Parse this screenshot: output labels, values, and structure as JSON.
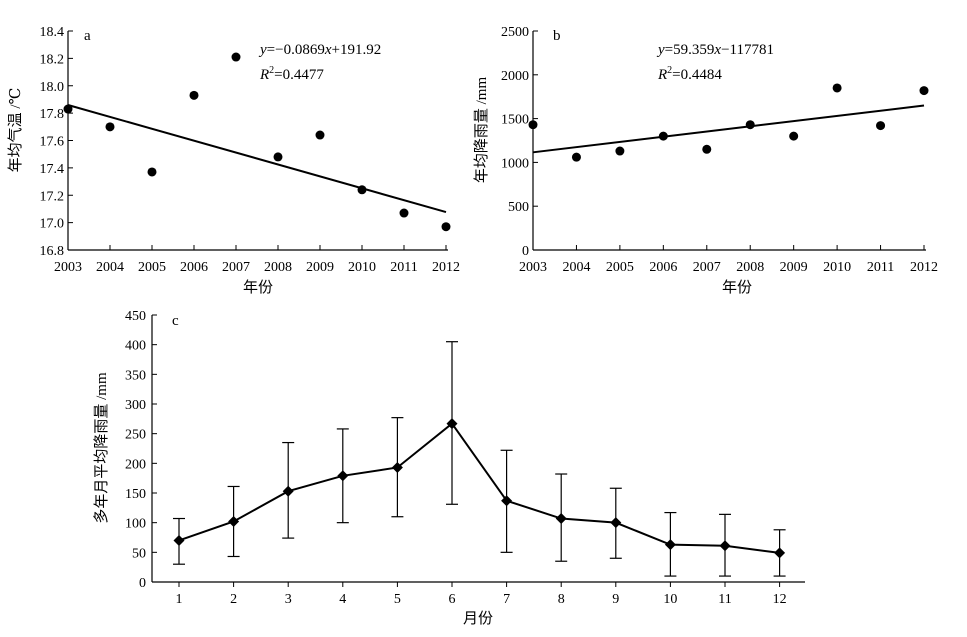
{
  "chart_data": [
    {
      "panel": "a",
      "type": "scatter",
      "xlabel": "年份",
      "ylabel": "年均气温 /℃",
      "x": [
        2003,
        2004,
        2005,
        2006,
        2007,
        2008,
        2009,
        2010,
        2011,
        2012
      ],
      "xticks": [
        "2003",
        "2004",
        "2005",
        "2006",
        "2007",
        "2008",
        "2009",
        "2010",
        "2011",
        "2012"
      ],
      "y": [
        17.83,
        17.7,
        17.37,
        17.93,
        18.21,
        17.48,
        17.64,
        17.24,
        17.07,
        16.97
      ],
      "xlim": [
        2003,
        2012
      ],
      "ylim": [
        16.8,
        18.4
      ],
      "yticks": [
        "16.8",
        "17.0",
        "17.2",
        "17.4",
        "17.6",
        "17.8",
        "18.0",
        "18.2",
        "18.4"
      ],
      "trend": {
        "slope": -0.0869,
        "intercept": 191.92
      },
      "equation": {
        "y_prefix": "y",
        "rest": "=−0.0869",
        "x_var": "x",
        "tail": "+191.92"
      },
      "r2": {
        "label": "R",
        "sup": "2",
        "value": "=0.4477"
      }
    },
    {
      "panel": "b",
      "type": "scatter",
      "xlabel": "年份",
      "ylabel": "年均降雨量 /mm",
      "x": [
        2003,
        2004,
        2005,
        2006,
        2007,
        2008,
        2009,
        2010,
        2011,
        2012
      ],
      "xticks": [
        "2003",
        "2004",
        "2005",
        "2006",
        "2007",
        "2008",
        "2009",
        "2010",
        "2011",
        "2012"
      ],
      "y": [
        1430,
        1060,
        1130,
        1300,
        1150,
        1430,
        1300,
        1850,
        1420,
        1820
      ],
      "xlim": [
        2003,
        2012
      ],
      "ylim": [
        0,
        2500
      ],
      "yticks": [
        "0",
        "500",
        "1000",
        "1500",
        "2000",
        "2500"
      ],
      "trend": {
        "slope": 59.359,
        "intercept": -117781
      },
      "equation": {
        "y_prefix": "y",
        "rest": "=59.359",
        "x_var": "x",
        "tail": "−117781"
      },
      "r2": {
        "label": "R",
        "sup": "2",
        "value": "=0.4484"
      }
    },
    {
      "panel": "c",
      "type": "line",
      "xlabel": "月份",
      "ylabel": "多年月平均降雨量 /mm",
      "categories": [
        "1",
        "2",
        "3",
        "4",
        "5",
        "6",
        "7",
        "8",
        "9",
        "10",
        "11",
        "12"
      ],
      "values": [
        70,
        102,
        153,
        179,
        193,
        267,
        137,
        107,
        100,
        63,
        61,
        49
      ],
      "error_upper": [
        107,
        161,
        235,
        258,
        277,
        405,
        222,
        182,
        158,
        117,
        114,
        88
      ],
      "error_lower": [
        30,
        43,
        74,
        100,
        110,
        131,
        50,
        35,
        40,
        10,
        10,
        10
      ],
      "ylim": [
        0,
        450
      ],
      "yticks": [
        "0",
        "50",
        "100",
        "150",
        "200",
        "250",
        "300",
        "350",
        "400",
        "450"
      ]
    }
  ]
}
